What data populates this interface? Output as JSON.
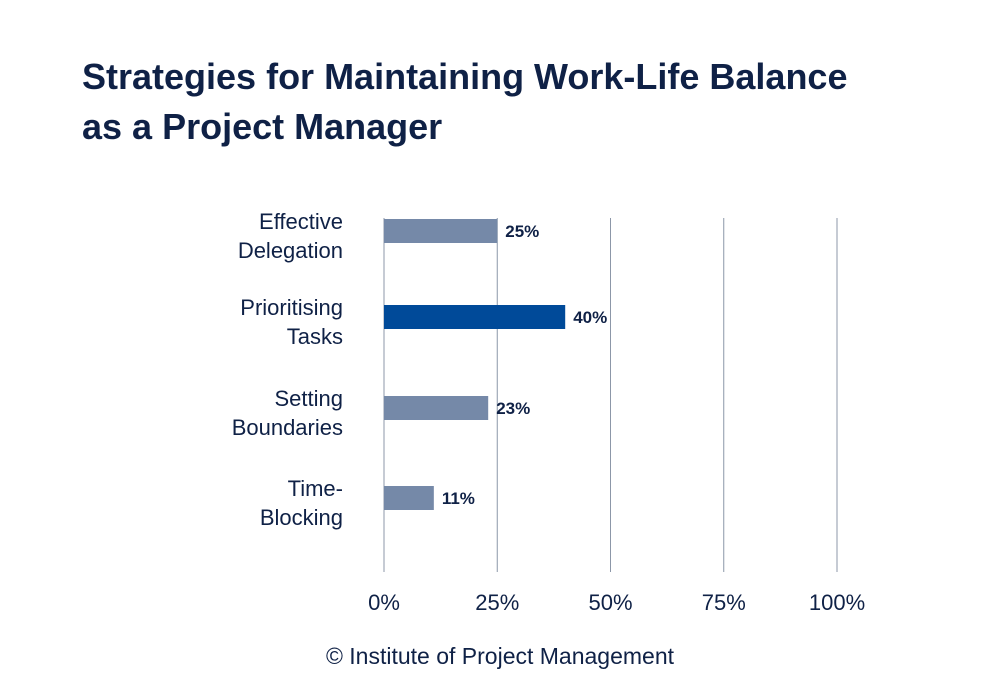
{
  "title": {
    "line1": "Strategies for Maintaining Work-Life Balance",
    "line2": "as a Project Manager"
  },
  "source": "© Institute of Project Management",
  "colors": {
    "text": "#0f2146",
    "bar_default": "#7589a8",
    "bar_highlight": "#004a99",
    "gridline": "#8c97a8"
  },
  "chart_data": {
    "type": "bar",
    "orientation": "horizontal",
    "categories": [
      [
        "Effective",
        "Delegation"
      ],
      [
        "Prioritising",
        "Tasks"
      ],
      [
        "Setting",
        "Boundaries"
      ],
      [
        "Time-",
        "Blocking"
      ]
    ],
    "values": [
      25,
      40,
      23,
      11
    ],
    "value_labels": [
      "25%",
      "40%",
      "23%",
      "11%"
    ],
    "highlight_index": 1,
    "xlim": [
      0,
      100
    ],
    "xticks": [
      0,
      25,
      50,
      75,
      100
    ],
    "xtick_labels": [
      "0%",
      "25%",
      "50%",
      "75%",
      "100%"
    ],
    "grid": true
  }
}
